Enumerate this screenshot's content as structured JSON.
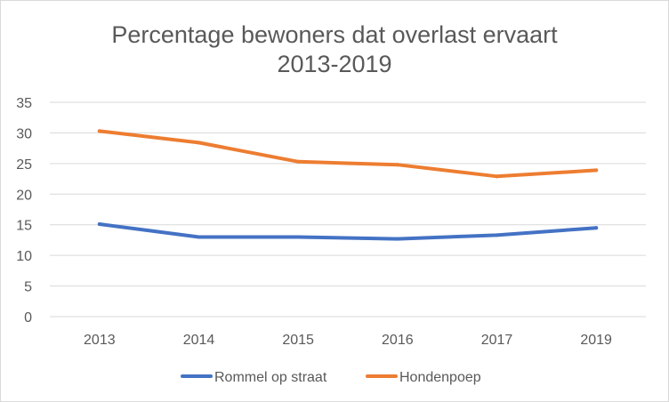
{
  "chart_data": {
    "type": "line",
    "title": "Percentage bewoners dat overlast ervaart",
    "subtitle": "2013-2019",
    "xlabel": "",
    "ylabel": "",
    "categories": [
      "2013",
      "2014",
      "2015",
      "2016",
      "2017",
      "2019"
    ],
    "yticks": [
      "0",
      "5",
      "10",
      "15",
      "20",
      "25",
      "30",
      "35"
    ],
    "ylim": [
      0,
      35
    ],
    "grid": true,
    "legend_position": "bottom",
    "series": [
      {
        "name": "Rommel op straat",
        "color": "#4472c4",
        "values": [
          15.1,
          13.0,
          13.0,
          12.7,
          13.3,
          14.5
        ]
      },
      {
        "name": "Hondenpoep",
        "color": "#ed7d31",
        "values": [
          30.3,
          28.4,
          25.3,
          24.8,
          22.9,
          23.9
        ]
      }
    ]
  }
}
